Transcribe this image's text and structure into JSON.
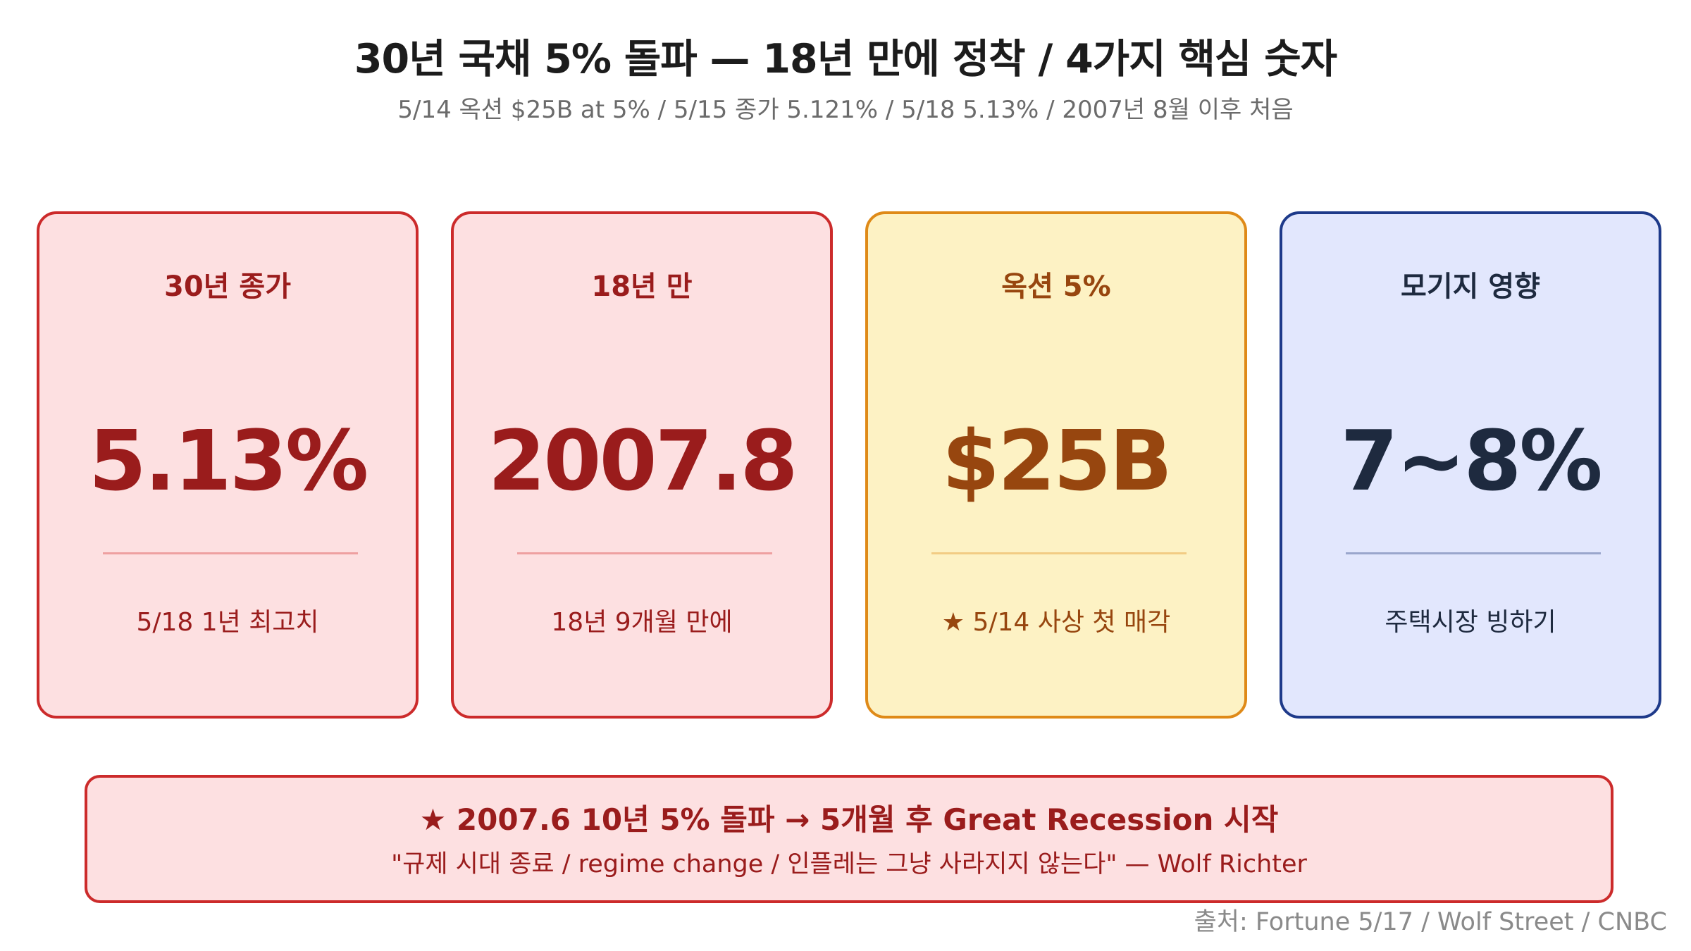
{
  "header": {
    "title": "30년 국채 5% 돌파 — 18년 만에 정착 / 4가지 핵심 숫자",
    "subtitle": "5/14 옥션 $25B at 5% / 5/15 종가 5.121% / 5/18 5.13% / 2007년 8월 이후 처음"
  },
  "cards": [
    {
      "label": "30년 종가",
      "value": "5.13%",
      "note": "5/18 1년 최고치"
    },
    {
      "label": "18년 만",
      "value": "2007.8",
      "note": "18년 9개월 만에"
    },
    {
      "label": "옥션 5%",
      "value": "$25B",
      "note": "★ 5/14 사상 첫 매각"
    },
    {
      "label": "모기지 영향",
      "value": "7~8%",
      "note": "주택시장 빙하기"
    }
  ],
  "callout": {
    "headline": "★ 2007.6 10년 5% 돌파 → 5개월 후 Great Recession 시작",
    "quote": "\"규제 시대 종료 / regime change / 인플레는 그냥 사라지지 않는다\" — Wolf Richter"
  },
  "source": "출처: Fortune 5/17 / Wolf Street / CNBC",
  "colors": {
    "red_accent": "#cc2b2b",
    "red_fill": "#fde0e1",
    "amber_accent": "#df8a18",
    "amber_fill": "#fdf2c4",
    "navy_accent": "#1e3a8a",
    "navy_fill": "#e2e7fd"
  }
}
